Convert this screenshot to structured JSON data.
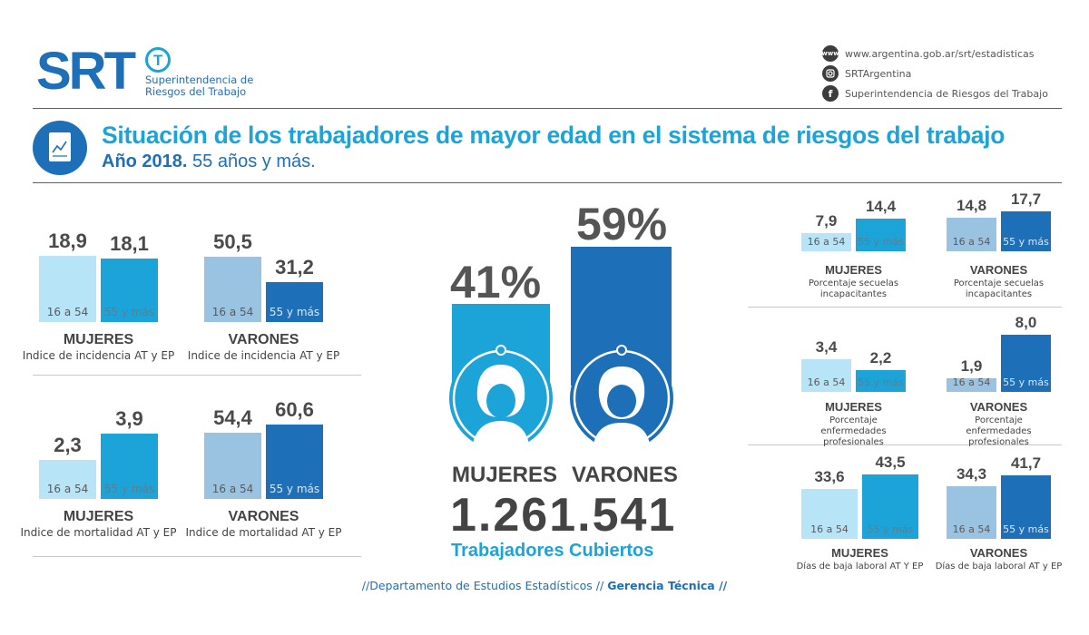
{
  "header": {
    "logo_text": "SRT",
    "logo_sub_1": "Superintendencia de",
    "logo_sub_2": "Riesgos del Trabajo",
    "web": "www.argentina.gob.ar/srt/estadisticas",
    "instagram": "SRTArgentina",
    "facebook": "Superintendencia de Riesgos del Trabajo",
    "web_icon_text": "www",
    "title": "Situación de los trabajadores de mayor edad en el sistema de riesgos del trabajo",
    "subtitle_bold": "Año 2018.",
    "subtitle_rest": "55 años y más."
  },
  "colors": {
    "mujeres_16_54": "#b8e4f7",
    "mujeres_55": "#1ca4d9",
    "varones_16_54": "#9ac3e2",
    "varones_55": "#1d6fb8",
    "brand_dark": "#1d6fb8",
    "brand_light": "#1ca4d9"
  },
  "center": {
    "mujeres_pct_label": "41%",
    "varones_pct_label": "59%",
    "mujeres_label": "MUJERES",
    "varones_label": "VARONES",
    "total": "1.261.541",
    "total_label": "Trabajadores Cubiertos"
  },
  "footer": {
    "part1": "//Departamento de Estudios Estadísticos  //",
    "part2": "Gerencia Técnica //"
  },
  "chart_data": [
    {
      "type": "bar",
      "id": "center_share",
      "categories": [
        "MUJERES",
        "VARONES"
      ],
      "values": [
        41,
        59
      ],
      "unit": "%"
    },
    {
      "type": "bar",
      "id": "l1",
      "categories": [
        "16 a 54",
        "55 y más"
      ],
      "values": [
        18.9,
        18.1
      ],
      "labels": [
        "18,9",
        "18,1"
      ],
      "title": "MUJERES",
      "subtitle": "Indice de incidencia AT y EP"
    },
    {
      "type": "bar",
      "id": "l2",
      "categories": [
        "16 a 54",
        "55 y más"
      ],
      "values": [
        50.5,
        31.2
      ],
      "labels": [
        "50,5",
        "31,2"
      ],
      "title": "VARONES",
      "subtitle": "Indice de incidencia AT y EP"
    },
    {
      "type": "bar",
      "id": "l3",
      "categories": [
        "16 a 54",
        "55 y más"
      ],
      "values": [
        2.3,
        3.9
      ],
      "labels": [
        "2,3",
        "3,9"
      ],
      "title": "MUJERES",
      "subtitle": "Indice de mortalidad  AT y EP"
    },
    {
      "type": "bar",
      "id": "l4",
      "categories": [
        "16 a 54",
        "55 y más"
      ],
      "values": [
        54.4,
        60.6
      ],
      "labels": [
        "54,4",
        "60,6"
      ],
      "title": "VARONES",
      "subtitle": "Indice de mortalidad AT y EP"
    },
    {
      "type": "bar",
      "id": "r1",
      "categories": [
        "16 a 54",
        "55 y más"
      ],
      "values": [
        7.9,
        14.4
      ],
      "labels": [
        "7,9",
        "14,4"
      ],
      "title": "MUJERES",
      "subtitle": "Porcentaje secuelas incapacitantes"
    },
    {
      "type": "bar",
      "id": "r2",
      "categories": [
        "16 a 54",
        "55 y más"
      ],
      "values": [
        14.8,
        17.7
      ],
      "labels": [
        "14,8",
        "17,7"
      ],
      "title": "VARONES",
      "subtitle": "Porcentaje secuelas incapacitantes"
    },
    {
      "type": "bar",
      "id": "r3",
      "categories": [
        "16 a 54",
        "55 y más"
      ],
      "values": [
        3.4,
        2.2
      ],
      "labels": [
        "3,4",
        "2,2"
      ],
      "title": "MUJERES",
      "subtitle": "Porcentaje enfermedades profesionales"
    },
    {
      "type": "bar",
      "id": "r4",
      "categories": [
        "16 a 54",
        "55 y más"
      ],
      "values": [
        1.9,
        8.0
      ],
      "labels": [
        "1,9",
        "8,0"
      ],
      "title": "VARONES",
      "subtitle": "Porcentaje enfermedades profesionales"
    },
    {
      "type": "bar",
      "id": "r5",
      "categories": [
        "16 a 54",
        "55 y más"
      ],
      "values": [
        33.6,
        43.5
      ],
      "labels": [
        "33,6",
        "43,5"
      ],
      "title": "MUJERES",
      "subtitle": "Días de baja laboral AT Y EP"
    },
    {
      "type": "bar",
      "id": "r6",
      "categories": [
        "16 a 54",
        "55 y más"
      ],
      "values": [
        34.3,
        41.7
      ],
      "labels": [
        "34,3",
        "41,7"
      ],
      "title": "VARONES",
      "subtitle": "Días de baja laboral AT y EP"
    }
  ]
}
